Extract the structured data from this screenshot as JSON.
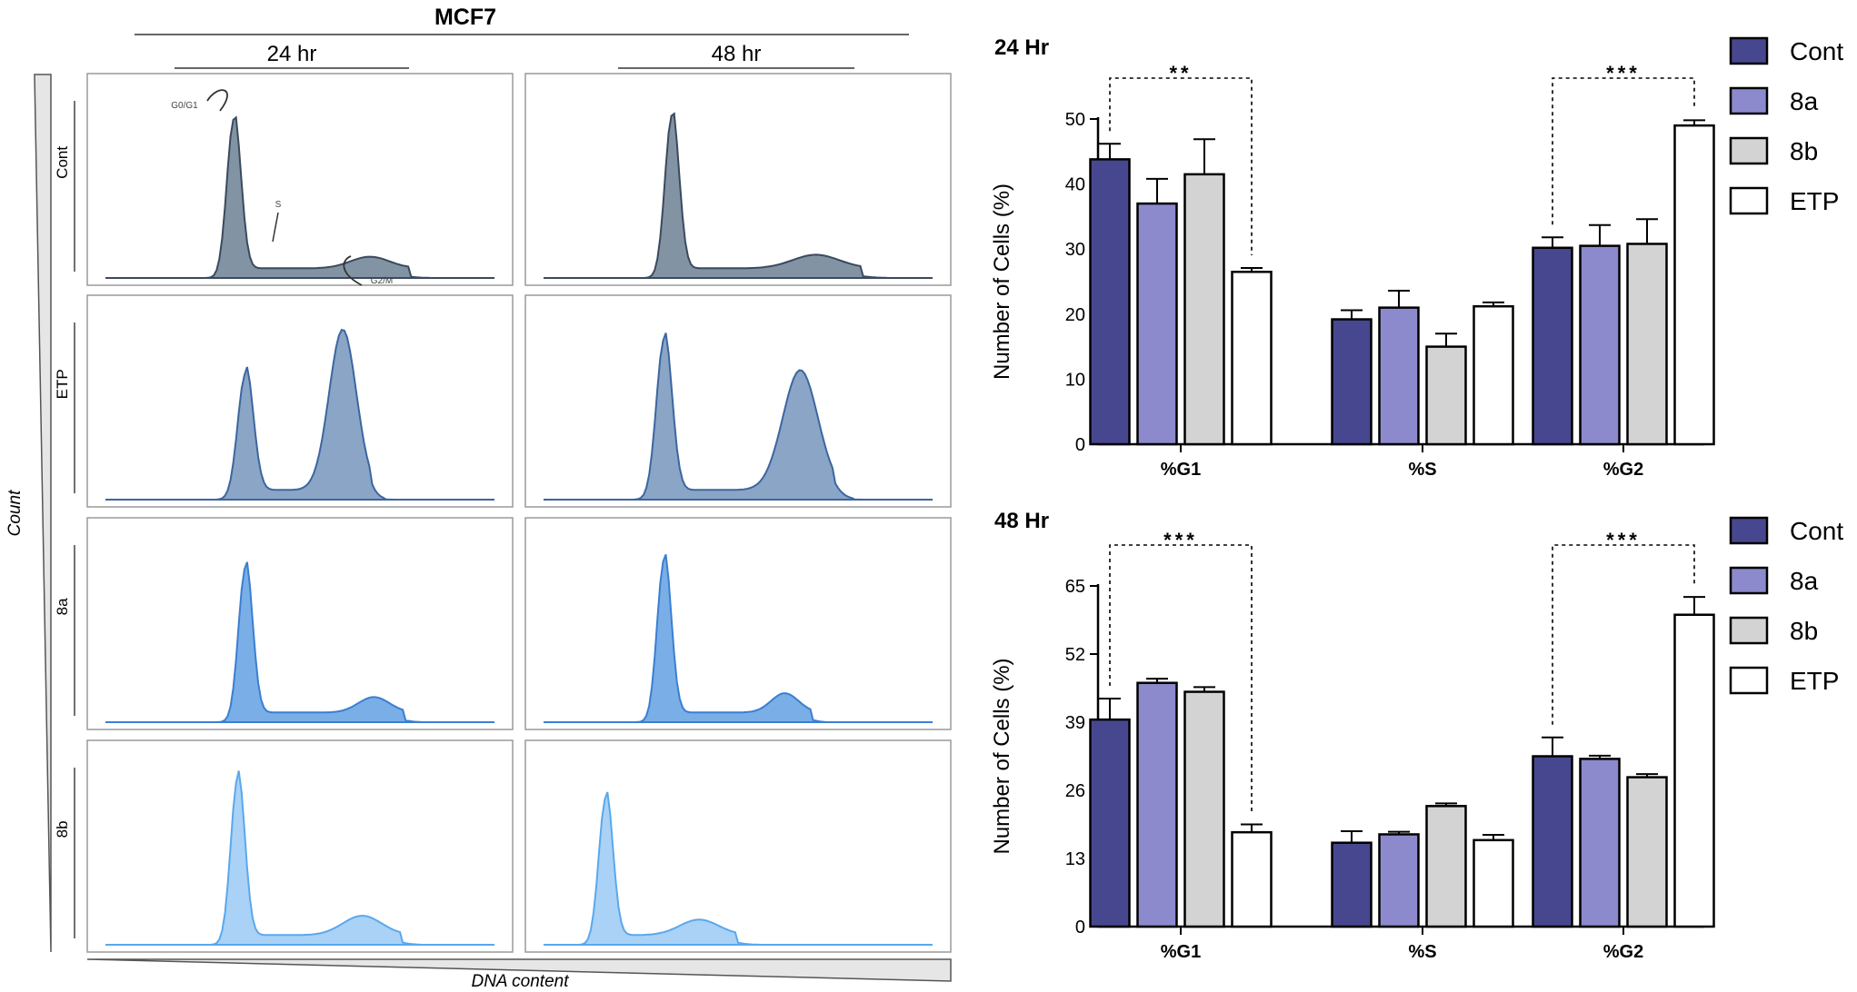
{
  "figure": {
    "title": "MCF7",
    "flow_panel": {
      "time_labels": [
        "24 hr",
        "48 hr"
      ],
      "row_labels": [
        "Cont",
        "ETP",
        "8a",
        "8b"
      ],
      "y_axis_label": "Count",
      "x_axis_label": "DNA content",
      "annotations": [
        "G0/G1",
        "S",
        "G2/M"
      ],
      "fill_colors": [
        "#8293a3",
        "#8aa5c6",
        "#7aaee6",
        "#a9d2f6"
      ],
      "line_colors": [
        "#3a4a5e",
        "#3c66a0",
        "#3a7fd2",
        "#5aa8ec"
      ]
    }
  },
  "chart_data": [
    {
      "type": "bar",
      "title": "24 Hr",
      "xlabel": "",
      "ylabel": "Number of Cells (%)",
      "ylim": [
        0,
        50
      ],
      "yticks": [
        0,
        10,
        20,
        30,
        40,
        50
      ],
      "categories": [
        "%G1",
        "%S",
        "%G2"
      ],
      "series": [
        {
          "name": "Cont",
          "color": "#47478f",
          "values": [
            43.8,
            19.2,
            30.2
          ],
          "errors": [
            2.4,
            1.4,
            1.6
          ]
        },
        {
          "name": "8a",
          "color": "#8c89cc",
          "values": [
            37.0,
            21.0,
            30.5
          ],
          "errors": [
            3.8,
            2.6,
            3.2
          ]
        },
        {
          "name": "8b",
          "color": "#d3d3d3",
          "values": [
            41.5,
            15.0,
            30.8
          ],
          "errors": [
            5.4,
            2.0,
            3.8
          ]
        },
        {
          "name": "ETP",
          "color": "#ffffff",
          "values": [
            26.5,
            21.2,
            49.0
          ],
          "errors": [
            0.6,
            0.6,
            0.8
          ]
        }
      ],
      "significance": [
        {
          "category": "%G1",
          "label": "**"
        },
        {
          "category": "%G2",
          "label": "***"
        }
      ],
      "legend": "right"
    },
    {
      "type": "bar",
      "title": "48 Hr",
      "xlabel": "",
      "ylabel": "Number of Cells (%)",
      "ylim": [
        0,
        65
      ],
      "yticks": [
        0,
        13,
        26,
        39,
        52,
        65
      ],
      "categories": [
        "%G1",
        "%S",
        "%G2"
      ],
      "series": [
        {
          "name": "Cont",
          "color": "#47478f",
          "values": [
            39.5,
            16.0,
            32.5
          ],
          "errors": [
            4.0,
            2.2,
            3.6
          ]
        },
        {
          "name": "8a",
          "color": "#8c89cc",
          "values": [
            46.5,
            17.6,
            32.0
          ],
          "errors": [
            0.8,
            0.5,
            0.6
          ]
        },
        {
          "name": "8b",
          "color": "#d3d3d3",
          "values": [
            44.8,
            23.0,
            28.5
          ],
          "errors": [
            0.9,
            0.5,
            0.6
          ]
        },
        {
          "name": "ETP",
          "color": "#ffffff",
          "values": [
            18.0,
            16.5,
            59.5
          ],
          "errors": [
            1.5,
            1.0,
            3.4
          ]
        }
      ],
      "significance": [
        {
          "category": "%G1",
          "label": "***"
        },
        {
          "category": "%G2",
          "label": "***"
        }
      ],
      "legend": "right"
    }
  ]
}
